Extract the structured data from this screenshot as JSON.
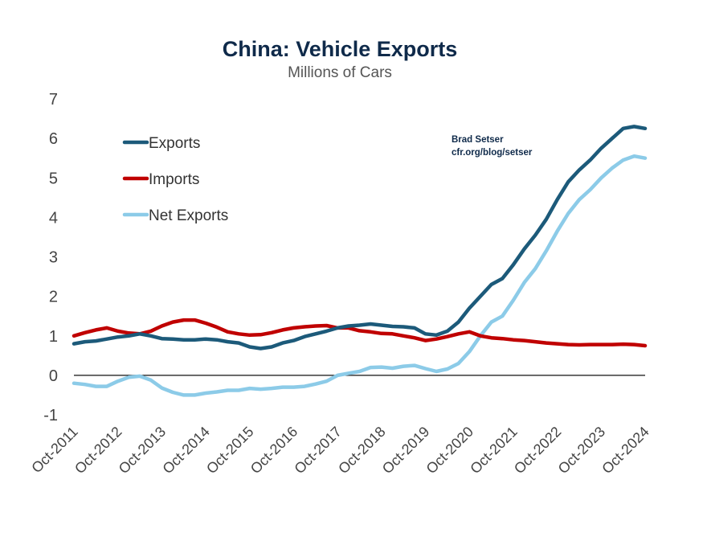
{
  "chart_data": {
    "type": "line",
    "title": "China: Vehicle Exports",
    "subtitle": "Millions of Cars",
    "ylim": [
      -1,
      7
    ],
    "yticks": [
      -1,
      0,
      1,
      2,
      3,
      4,
      5,
      6,
      7
    ],
    "xlim": [
      "2011-10",
      "2024-10"
    ],
    "xticks": [
      "Oct-2011",
      "Oct-2012",
      "Oct-2013",
      "Oct-2014",
      "Oct-2015",
      "Oct-2016",
      "Oct-2017",
      "Oct-2018",
      "Oct-2019",
      "Oct-2020",
      "Oct-2021",
      "Oct-2022",
      "Oct-2023",
      "Oct-2024"
    ],
    "legend_position": "top-left",
    "zero_line": true,
    "credit": [
      "Brad Setser",
      "cfr.org/blog/setser"
    ],
    "series": [
      {
        "name": "Exports",
        "color": "#1c5a7a",
        "x": [
          "2011-10",
          "2012-01",
          "2012-04",
          "2012-07",
          "2012-10",
          "2013-01",
          "2013-04",
          "2013-07",
          "2013-10",
          "2014-01",
          "2014-04",
          "2014-07",
          "2014-10",
          "2015-01",
          "2015-04",
          "2015-07",
          "2015-10",
          "2016-01",
          "2016-04",
          "2016-07",
          "2016-10",
          "2017-01",
          "2017-04",
          "2017-07",
          "2017-10",
          "2018-01",
          "2018-04",
          "2018-07",
          "2018-10",
          "2019-01",
          "2019-04",
          "2019-07",
          "2019-10",
          "2020-01",
          "2020-04",
          "2020-07",
          "2020-10",
          "2021-01",
          "2021-04",
          "2021-07",
          "2021-10",
          "2022-01",
          "2022-04",
          "2022-07",
          "2022-10",
          "2023-01",
          "2023-04",
          "2023-07",
          "2023-10",
          "2024-01",
          "2024-04",
          "2024-07",
          "2024-10"
        ],
        "y": [
          0.8,
          0.85,
          0.87,
          0.92,
          0.97,
          1.0,
          1.05,
          1.0,
          0.93,
          0.92,
          0.9,
          0.9,
          0.92,
          0.9,
          0.85,
          0.82,
          0.72,
          0.68,
          0.72,
          0.82,
          0.88,
          0.98,
          1.05,
          1.12,
          1.2,
          1.25,
          1.27,
          1.3,
          1.27,
          1.24,
          1.23,
          1.2,
          1.05,
          1.02,
          1.12,
          1.35,
          1.7,
          2.0,
          2.3,
          2.45,
          2.8,
          3.2,
          3.55,
          3.95,
          4.45,
          4.9,
          5.2,
          5.45,
          5.75,
          6.0,
          6.25,
          6.3,
          6.25
        ]
      },
      {
        "name": "Imports",
        "color": "#c00000",
        "x": [
          "2011-10",
          "2012-01",
          "2012-04",
          "2012-07",
          "2012-10",
          "2013-01",
          "2013-04",
          "2013-07",
          "2013-10",
          "2014-01",
          "2014-04",
          "2014-07",
          "2014-10",
          "2015-01",
          "2015-04",
          "2015-07",
          "2015-10",
          "2016-01",
          "2016-04",
          "2016-07",
          "2016-10",
          "2017-01",
          "2017-04",
          "2017-07",
          "2017-10",
          "2018-01",
          "2018-04",
          "2018-07",
          "2018-10",
          "2019-01",
          "2019-04",
          "2019-07",
          "2019-10",
          "2020-01",
          "2020-04",
          "2020-07",
          "2020-10",
          "2021-01",
          "2021-04",
          "2021-07",
          "2021-10",
          "2022-01",
          "2022-04",
          "2022-07",
          "2022-10",
          "2023-01",
          "2023-04",
          "2023-07",
          "2023-10",
          "2024-01",
          "2024-04",
          "2024-07",
          "2024-10"
        ],
        "y": [
          1.0,
          1.08,
          1.15,
          1.2,
          1.12,
          1.07,
          1.05,
          1.12,
          1.25,
          1.35,
          1.4,
          1.4,
          1.32,
          1.22,
          1.1,
          1.05,
          1.02,
          1.03,
          1.08,
          1.15,
          1.2,
          1.23,
          1.25,
          1.26,
          1.2,
          1.2,
          1.13,
          1.1,
          1.06,
          1.05,
          1.0,
          0.95,
          0.88,
          0.92,
          0.98,
          1.05,
          1.1,
          1.0,
          0.95,
          0.93,
          0.9,
          0.88,
          0.85,
          0.82,
          0.8,
          0.78,
          0.77,
          0.78,
          0.78,
          0.78,
          0.79,
          0.78,
          0.75
        ]
      },
      {
        "name": "Net Exports",
        "color": "#8ccbe8",
        "x": [
          "2011-10",
          "2012-01",
          "2012-04",
          "2012-07",
          "2012-10",
          "2013-01",
          "2013-04",
          "2013-07",
          "2013-10",
          "2014-01",
          "2014-04",
          "2014-07",
          "2014-10",
          "2015-01",
          "2015-04",
          "2015-07",
          "2015-10",
          "2016-01",
          "2016-04",
          "2016-07",
          "2016-10",
          "2017-01",
          "2017-04",
          "2017-07",
          "2017-10",
          "2018-01",
          "2018-04",
          "2018-07",
          "2018-10",
          "2019-01",
          "2019-04",
          "2019-07",
          "2019-10",
          "2020-01",
          "2020-04",
          "2020-07",
          "2020-10",
          "2021-01",
          "2021-04",
          "2021-07",
          "2021-10",
          "2022-01",
          "2022-04",
          "2022-07",
          "2022-10",
          "2023-01",
          "2023-04",
          "2023-07",
          "2023-10",
          "2024-01",
          "2024-04",
          "2024-07",
          "2024-10"
        ],
        "y": [
          -0.2,
          -0.23,
          -0.28,
          -0.28,
          -0.15,
          -0.05,
          -0.02,
          -0.12,
          -0.32,
          -0.43,
          -0.5,
          -0.5,
          -0.45,
          -0.42,
          -0.38,
          -0.38,
          -0.33,
          -0.35,
          -0.33,
          -0.3,
          -0.3,
          -0.28,
          -0.22,
          -0.15,
          0.0,
          0.05,
          0.1,
          0.2,
          0.21,
          0.18,
          0.23,
          0.25,
          0.17,
          0.1,
          0.16,
          0.3,
          0.6,
          1.0,
          1.35,
          1.5,
          1.9,
          2.35,
          2.7,
          3.15,
          3.65,
          4.1,
          4.45,
          4.7,
          5.0,
          5.25,
          5.45,
          5.55,
          5.5
        ]
      }
    ]
  }
}
